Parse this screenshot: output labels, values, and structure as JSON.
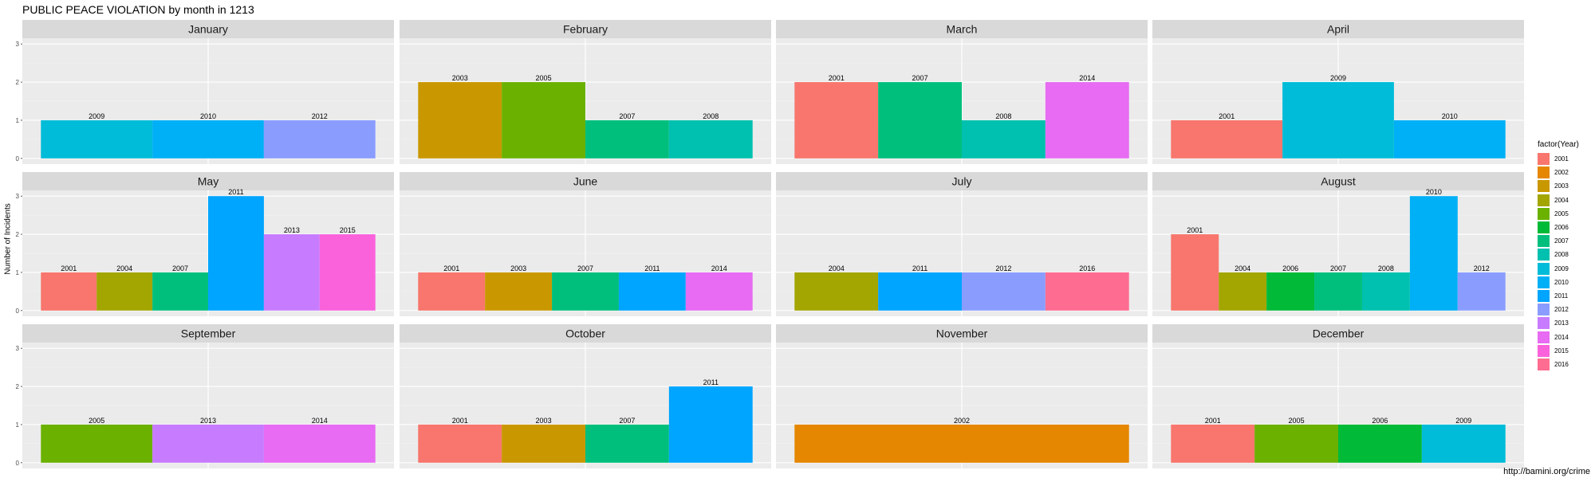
{
  "title": "PUBLIC PEACE VIOLATION by month in 1213",
  "ylabel": "Number of Incidents",
  "source": "http://bamini.org/crime",
  "colors": {
    "2001": "#F8766D",
    "2002": "#E58700",
    "2003": "#C99800",
    "2004": "#A3A500",
    "2005": "#6BB100",
    "2006": "#00BA38",
    "2007": "#00BF7D",
    "2008": "#00C0AF",
    "2009": "#00BCD8",
    "2010": "#00B0F6",
    "2011": "#00A5FF",
    "2012": "#8A9DFF",
    "2013": "#C77CFF",
    "2014": "#E76BF3",
    "2015": "#FA62DB",
    "2016": "#FF6C91"
  },
  "legend": {
    "title": "factor(Year)",
    "items": [
      "2001",
      "2002",
      "2003",
      "2004",
      "2005",
      "2006",
      "2007",
      "2008",
      "2009",
      "2010",
      "2011",
      "2012",
      "2013",
      "2014",
      "2015",
      "2016"
    ]
  },
  "chart_data": {
    "type": "bar",
    "title": "PUBLIC PEACE VIOLATION by month in 1213",
    "ylabel": "Number of Incidents",
    "ylim": [
      0,
      3
    ],
    "yticks": [
      0,
      1,
      2,
      3
    ],
    "grid": true,
    "legend_placement": "right",
    "facets": [
      {
        "month": "January",
        "bars": [
          {
            "year": "2009",
            "value": 1
          },
          {
            "year": "2010",
            "value": 1
          },
          {
            "year": "2012",
            "value": 1
          }
        ]
      },
      {
        "month": "February",
        "bars": [
          {
            "year": "2003",
            "value": 2
          },
          {
            "year": "2005",
            "value": 2
          },
          {
            "year": "2007",
            "value": 1
          },
          {
            "year": "2008",
            "value": 1
          }
        ]
      },
      {
        "month": "March",
        "bars": [
          {
            "year": "2001",
            "value": 2
          },
          {
            "year": "2007",
            "value": 2
          },
          {
            "year": "2008",
            "value": 1
          },
          {
            "year": "2014",
            "value": 2
          }
        ]
      },
      {
        "month": "April",
        "bars": [
          {
            "year": "2001",
            "value": 1
          },
          {
            "year": "2009",
            "value": 2
          },
          {
            "year": "2010",
            "value": 1
          }
        ]
      },
      {
        "month": "May",
        "bars": [
          {
            "year": "2001",
            "value": 1
          },
          {
            "year": "2004",
            "value": 1
          },
          {
            "year": "2007",
            "value": 1
          },
          {
            "year": "2011",
            "value": 3
          },
          {
            "year": "2013",
            "value": 2
          },
          {
            "year": "2015",
            "value": 2
          }
        ]
      },
      {
        "month": "June",
        "bars": [
          {
            "year": "2001",
            "value": 1
          },
          {
            "year": "2003",
            "value": 1
          },
          {
            "year": "2007",
            "value": 1
          },
          {
            "year": "2011",
            "value": 1
          },
          {
            "year": "2014",
            "value": 1
          }
        ]
      },
      {
        "month": "July",
        "bars": [
          {
            "year": "2004",
            "value": 1
          },
          {
            "year": "2011",
            "value": 1
          },
          {
            "year": "2012",
            "value": 1
          },
          {
            "year": "2016",
            "value": 1
          }
        ]
      },
      {
        "month": "August",
        "bars": [
          {
            "year": "2001",
            "value": 2
          },
          {
            "year": "2004",
            "value": 1
          },
          {
            "year": "2006",
            "value": 1
          },
          {
            "year": "2007",
            "value": 1
          },
          {
            "year": "2008",
            "value": 1
          },
          {
            "year": "2010",
            "value": 3
          },
          {
            "year": "2012",
            "value": 1
          }
        ]
      },
      {
        "month": "September",
        "bars": [
          {
            "year": "2005",
            "value": 1
          },
          {
            "year": "2013",
            "value": 1
          },
          {
            "year": "2014",
            "value": 1
          }
        ]
      },
      {
        "month": "October",
        "bars": [
          {
            "year": "2001",
            "value": 1
          },
          {
            "year": "2003",
            "value": 1
          },
          {
            "year": "2007",
            "value": 1
          },
          {
            "year": "2011",
            "value": 2
          }
        ]
      },
      {
        "month": "November",
        "bars": [
          {
            "year": "2002",
            "value": 1
          }
        ]
      },
      {
        "month": "December",
        "bars": [
          {
            "year": "2001",
            "value": 1
          },
          {
            "year": "2005",
            "value": 1
          },
          {
            "year": "2006",
            "value": 1
          },
          {
            "year": "2009",
            "value": 1
          }
        ]
      }
    ]
  }
}
